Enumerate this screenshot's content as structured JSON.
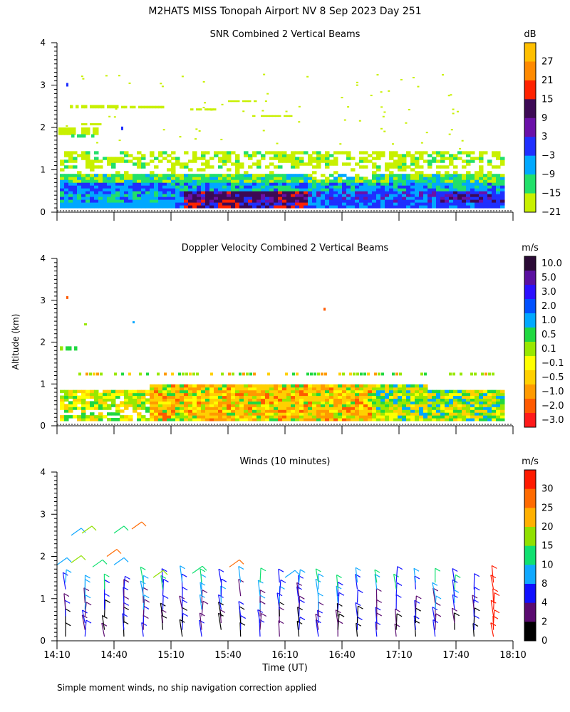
{
  "figure": {
    "title": "M2HATS MISS Tonopah Airport NV   8 Sep 2023 Day 251",
    "ylabel": "Altitude (km)",
    "xlabel": "Time (UT)",
    "footnote": "Simple moment winds, no ship navigation correction applied"
  },
  "chart_data": [
    {
      "type": "heatmap",
      "title": "SNR Combined 2 Vertical Beams",
      "unit": "dB",
      "y_ticks": [
        "0",
        "1",
        "2",
        "3",
        "4"
      ],
      "ylim": [
        0,
        4
      ],
      "colorbar": {
        "labels": [
          "27",
          "21",
          "15",
          "9",
          "3",
          "−3",
          "−9",
          "−15",
          "−21"
        ],
        "colors": [
          "#ffbf00",
          "#ff8a00",
          "#ff2200",
          "#3d0a55",
          "#6a10a8",
          "#1f2fff",
          "#00a8ff",
          "#22e06a",
          "#c8f000"
        ]
      }
    },
    {
      "type": "heatmap",
      "title": "Doppler Velocity Combined 2 Vertical Beams",
      "unit": "m/s",
      "y_ticks": [
        "0",
        "1",
        "2",
        "3",
        "4"
      ],
      "ylim": [
        0,
        4
      ],
      "colorbar": {
        "labels": [
          "10.0",
          "5.0",
          "3.0",
          "2.0",
          "1.0",
          "0.5",
          "0.1",
          "−0.1",
          "−0.5",
          "−1.0",
          "−2.0",
          "−3.0"
        ],
        "colors": [
          "#2a0a35",
          "#5a10a0",
          "#2a10ff",
          "#0050ff",
          "#00a8ff",
          "#20d840",
          "#98e800",
          "#ffff00",
          "#ffd000",
          "#ff9a00",
          "#ff5a00",
          "#ff1a1a"
        ]
      }
    },
    {
      "type": "scatter",
      "title": "Winds (10 minutes)",
      "unit": "m/s",
      "y_ticks": [
        "0",
        "1",
        "2",
        "3",
        "4"
      ],
      "ylim": [
        0,
        4
      ],
      "x_ticks": [
        "14:10",
        "14:40",
        "15:10",
        "15:40",
        "16:10",
        "16:40",
        "17:10",
        "17:40",
        "18:10"
      ],
      "colorbar": {
        "labels": [
          "30",
          "25",
          "20",
          "15",
          "10",
          "8",
          "4",
          "2",
          "0"
        ],
        "colors": [
          "#ff1a00",
          "#ff6a00",
          "#ffb000",
          "#90e000",
          "#10e070",
          "#10a8ff",
          "#1010ff",
          "#5a0a70",
          "#000000"
        ]
      }
    }
  ]
}
